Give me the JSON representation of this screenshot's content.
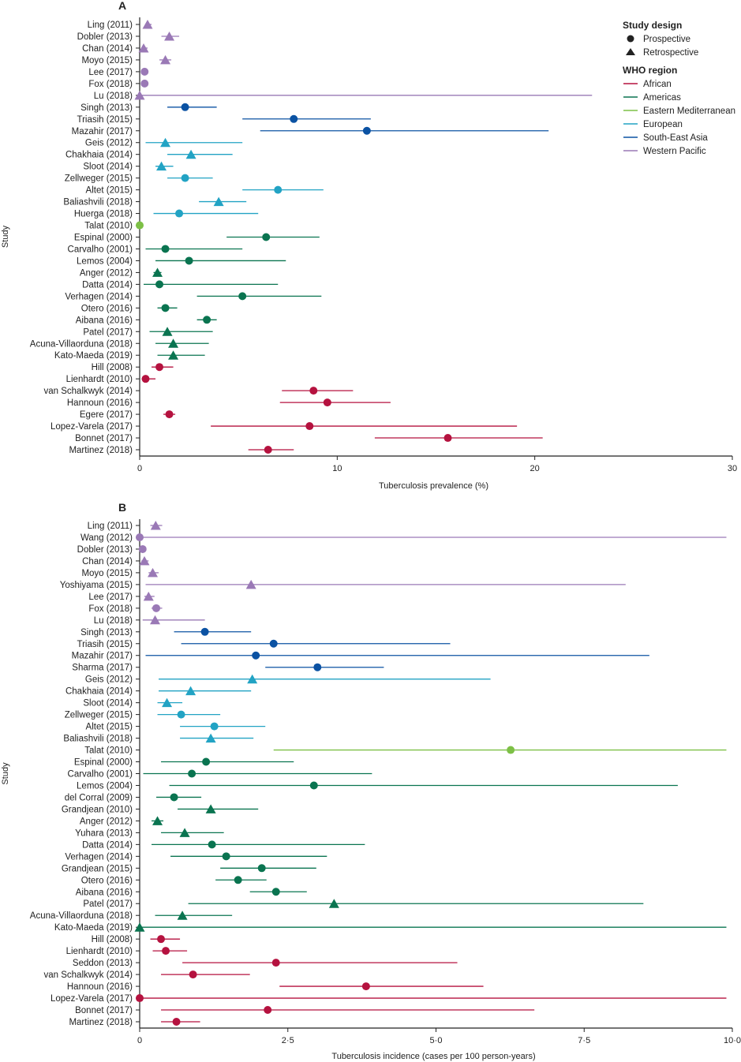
{
  "colors": {
    "African": "#b5123f",
    "Americas": "#0a7450",
    "Eastern Mediterranean": "#7dc046",
    "European": "#22a3c4",
    "South-East Asia": "#0b52a3",
    "Western Pacific": "#9a79b6"
  },
  "legend": {
    "design_title": "Study design",
    "prospective_label": "Prospective",
    "retrospective_label": "Retrospective",
    "region_title": "WHO region",
    "regions": [
      "African",
      "Americas",
      "Eastern Mediterranean",
      "European",
      "South-East Asia",
      "Western Pacific"
    ]
  },
  "y_axis_title": "Study",
  "chart_data": [
    {
      "type": "forest",
      "panel": "A",
      "xlabel": "Tuberculosis prevalence (%)",
      "ylabel": "Study",
      "xlim": [
        0,
        30
      ],
      "xticks": [
        0,
        10,
        20,
        30
      ],
      "xtick_labels": [
        "0",
        "10",
        "20",
        "30"
      ],
      "studies": [
        {
          "label": "Ling (2011)",
          "region": "Western Pacific",
          "design": "Retrospective",
          "est": 0.4,
          "lo": 0.3,
          "hi": 0.6
        },
        {
          "label": "Dobler (2013)",
          "region": "Western Pacific",
          "design": "Retrospective",
          "est": 1.5,
          "lo": 1.1,
          "hi": 2.0
        },
        {
          "label": "Chan (2014)",
          "region": "Western Pacific",
          "design": "Retrospective",
          "est": 0.2,
          "lo": 0.1,
          "hi": 0.4
        },
        {
          "label": "Moyo (2015)",
          "region": "Western Pacific",
          "design": "Retrospective",
          "est": 1.3,
          "lo": 1.0,
          "hi": 1.6
        },
        {
          "label": "Lee (2017)",
          "region": "Western Pacific",
          "design": "Prospective",
          "est": 0.25,
          "lo": 0.1,
          "hi": 0.4
        },
        {
          "label": "Fox (2018)",
          "region": "Western Pacific",
          "design": "Prospective",
          "est": 0.25,
          "lo": 0.15,
          "hi": 0.35
        },
        {
          "label": "Lu (2018)",
          "region": "Western Pacific",
          "design": "Retrospective",
          "est": 0.0,
          "lo": 0.0,
          "hi": 22.9
        },
        {
          "label": "Singh (2013)",
          "region": "South-East Asia",
          "design": "Prospective",
          "est": 2.3,
          "lo": 1.4,
          "hi": 3.9
        },
        {
          "label": "Triasih (2015)",
          "region": "South-East Asia",
          "design": "Prospective",
          "est": 7.8,
          "lo": 5.2,
          "hi": 11.7
        },
        {
          "label": "Mazahir (2017)",
          "region": "South-East Asia",
          "design": "Prospective",
          "est": 11.5,
          "lo": 6.1,
          "hi": 20.7
        },
        {
          "label": "Geis (2012)",
          "region": "European",
          "design": "Retrospective",
          "est": 1.3,
          "lo": 0.3,
          "hi": 5.2
        },
        {
          "label": "Chakhaia (2014)",
          "region": "European",
          "design": "Retrospective",
          "est": 2.6,
          "lo": 1.4,
          "hi": 4.7
        },
        {
          "label": "Sloot (2014)",
          "region": "European",
          "design": "Retrospective",
          "est": 1.1,
          "lo": 0.8,
          "hi": 1.7
        },
        {
          "label": "Zellweger (2015)",
          "region": "European",
          "design": "Prospective",
          "est": 2.3,
          "lo": 1.4,
          "hi": 3.7
        },
        {
          "label": "Altet (2015)",
          "region": "European",
          "design": "Prospective",
          "est": 7.0,
          "lo": 5.2,
          "hi": 9.3
        },
        {
          "label": "Baliashvili (2018)",
          "region": "European",
          "design": "Retrospective",
          "est": 4.0,
          "lo": 3.0,
          "hi": 5.4
        },
        {
          "label": "Huerga (2018)",
          "region": "European",
          "design": "Prospective",
          "est": 2.0,
          "lo": 0.7,
          "hi": 6.0
        },
        {
          "label": "Talat (2010)",
          "region": "Eastern Mediterranean",
          "design": "Prospective",
          "est": 0.0,
          "lo": 0.0,
          "hi": 0.0
        },
        {
          "label": "Espinal (2000)",
          "region": "Americas",
          "design": "Prospective",
          "est": 6.4,
          "lo": 4.4,
          "hi": 9.1
        },
        {
          "label": "Carvalho (2001)",
          "region": "Americas",
          "design": "Prospective",
          "est": 1.3,
          "lo": 0.3,
          "hi": 5.2
        },
        {
          "label": "Lemos (2004)",
          "region": "Americas",
          "design": "Prospective",
          "est": 2.5,
          "lo": 0.8,
          "hi": 7.4
        },
        {
          "label": "Anger (2012)",
          "region": "Americas",
          "design": "Retrospective",
          "est": 0.9,
          "lo": 0.7,
          "hi": 1.1
        },
        {
          "label": "Datta (2014)",
          "region": "Americas",
          "design": "Prospective",
          "est": 1.0,
          "lo": 0.2,
          "hi": 7.0
        },
        {
          "label": "Verhagen (2014)",
          "region": "Americas",
          "design": "Prospective",
          "est": 5.2,
          "lo": 2.9,
          "hi": 9.2
        },
        {
          "label": "Otero (2016)",
          "region": "Americas",
          "design": "Prospective",
          "est": 1.3,
          "lo": 0.9,
          "hi": 1.9
        },
        {
          "label": "Aibana (2016)",
          "region": "Americas",
          "design": "Prospective",
          "est": 3.4,
          "lo": 2.9,
          "hi": 3.9
        },
        {
          "label": "Patel (2017)",
          "region": "Americas",
          "design": "Retrospective",
          "est": 1.4,
          "lo": 0.5,
          "hi": 3.7
        },
        {
          "label": "Acuna-Villaorduna (2018)",
          "region": "Americas",
          "design": "Retrospective",
          "est": 1.7,
          "lo": 0.8,
          "hi": 3.5
        },
        {
          "label": "Kato-Maeda (2019)",
          "region": "Americas",
          "design": "Retrospective",
          "est": 1.7,
          "lo": 0.9,
          "hi": 3.3
        },
        {
          "label": "Hill (2008)",
          "region": "African",
          "design": "Prospective",
          "est": 1.0,
          "lo": 0.6,
          "hi": 1.7
        },
        {
          "label": "Lienhardt (2010)",
          "region": "African",
          "design": "Prospective",
          "est": 0.3,
          "lo": 0.1,
          "hi": 0.8
        },
        {
          "label": "van Schalkwyk (2014)",
          "region": "African",
          "design": "Prospective",
          "est": 8.8,
          "lo": 7.2,
          "hi": 10.8
        },
        {
          "label": "Hannoun (2016)",
          "region": "African",
          "design": "Prospective",
          "est": 9.5,
          "lo": 7.1,
          "hi": 12.7
        },
        {
          "label": "Egere (2017)",
          "region": "African",
          "design": "Prospective",
          "est": 1.5,
          "lo": 1.2,
          "hi": 1.8
        },
        {
          "label": "Lopez-Varela (2017)",
          "region": "African",
          "design": "Prospective",
          "est": 8.6,
          "lo": 3.6,
          "hi": 19.1
        },
        {
          "label": "Bonnet (2017)",
          "region": "African",
          "design": "Prospective",
          "est": 15.6,
          "lo": 11.9,
          "hi": 20.4
        },
        {
          "label": "Martinez (2018)",
          "region": "African",
          "design": "Prospective",
          "est": 6.5,
          "lo": 5.5,
          "hi": 7.8
        }
      ]
    },
    {
      "type": "forest",
      "panel": "B",
      "xlabel": "Tuberculosis incidence (cases per 100 person-years)",
      "ylabel": "Study",
      "xlim": [
        0,
        10
      ],
      "xticks": [
        0,
        2.5,
        5,
        7.5,
        10
      ],
      "xtick_labels": [
        "0",
        "2·5",
        "5·0",
        "7·5",
        "10·0"
      ],
      "studies": [
        {
          "label": "Ling (2011)",
          "region": "Western Pacific",
          "design": "Retrospective",
          "est": 0.27,
          "lo": 0.18,
          "hi": 0.38
        },
        {
          "label": "Wang (2012)",
          "region": "Western Pacific",
          "design": "Prospective",
          "est": 0.0,
          "lo": 0.0,
          "hi": 9.9
        },
        {
          "label": "Dobler (2013)",
          "region": "Western Pacific",
          "design": "Prospective",
          "est": 0.05,
          "lo": 0.02,
          "hi": 0.1
        },
        {
          "label": "Chan (2014)",
          "region": "Western Pacific",
          "design": "Retrospective",
          "est": 0.08,
          "lo": 0.03,
          "hi": 0.15
        },
        {
          "label": "Moyo (2015)",
          "region": "Western Pacific",
          "design": "Retrospective",
          "est": 0.22,
          "lo": 0.15,
          "hi": 0.32
        },
        {
          "label": "Yoshiyama (2015)",
          "region": "Western Pacific",
          "design": "Retrospective",
          "est": 1.88,
          "lo": 0.1,
          "hi": 8.2
        },
        {
          "label": "Lee (2017)",
          "region": "Western Pacific",
          "design": "Retrospective",
          "est": 0.15,
          "lo": 0.08,
          "hi": 0.25
        },
        {
          "label": "Fox (2018)",
          "region": "Western Pacific",
          "design": "Prospective",
          "est": 0.28,
          "lo": 0.2,
          "hi": 0.38
        },
        {
          "label": "Lu (2018)",
          "region": "Western Pacific",
          "design": "Retrospective",
          "est": 0.26,
          "lo": 0.05,
          "hi": 1.1
        },
        {
          "label": "Singh (2013)",
          "region": "South-East Asia",
          "design": "Prospective",
          "est": 1.1,
          "lo": 0.58,
          "hi": 1.88
        },
        {
          "label": "Triasih (2015)",
          "region": "South-East Asia",
          "design": "Prospective",
          "est": 2.26,
          "lo": 0.7,
          "hi": 5.24
        },
        {
          "label": "Mazahir (2017)",
          "region": "South-East Asia",
          "design": "Prospective",
          "est": 1.96,
          "lo": 0.1,
          "hi": 8.6
        },
        {
          "label": "Sharma (2017)",
          "region": "South-East Asia",
          "design": "Prospective",
          "est": 3.0,
          "lo": 2.12,
          "hi": 4.12
        },
        {
          "label": "Geis (2012)",
          "region": "European",
          "design": "Retrospective",
          "est": 1.9,
          "lo": 0.32,
          "hi": 5.92
        },
        {
          "label": "Chakhaia (2014)",
          "region": "European",
          "design": "Retrospective",
          "est": 0.86,
          "lo": 0.32,
          "hi": 1.88
        },
        {
          "label": "Sloot (2014)",
          "region": "European",
          "design": "Retrospective",
          "est": 0.46,
          "lo": 0.3,
          "hi": 0.72
        },
        {
          "label": "Zellweger (2015)",
          "region": "European",
          "design": "Prospective",
          "est": 0.7,
          "lo": 0.3,
          "hi": 1.36
        },
        {
          "label": "Altet (2015)",
          "region": "European",
          "design": "Prospective",
          "est": 1.26,
          "lo": 0.68,
          "hi": 2.12
        },
        {
          "label": "Baliashvili (2018)",
          "region": "European",
          "design": "Retrospective",
          "est": 1.2,
          "lo": 0.68,
          "hi": 1.92
        },
        {
          "label": "Talat (2010)",
          "region": "Eastern Mediterranean",
          "design": "Prospective",
          "est": 6.26,
          "lo": 2.26,
          "hi": 9.9
        },
        {
          "label": "Espinal (2000)",
          "region": "Americas",
          "design": "Prospective",
          "est": 1.12,
          "lo": 0.36,
          "hi": 2.6
        },
        {
          "label": "Carvalho (2001)",
          "region": "Americas",
          "design": "Prospective",
          "est": 0.88,
          "lo": 0.06,
          "hi": 3.92
        },
        {
          "label": "Lemos (2004)",
          "region": "Americas",
          "design": "Prospective",
          "est": 2.94,
          "lo": 0.5,
          "hi": 9.08
        },
        {
          "label": "del Corral (2009)",
          "region": "Americas",
          "design": "Prospective",
          "est": 0.58,
          "lo": 0.28,
          "hi": 1.04
        },
        {
          "label": "Grandjean (2010)",
          "region": "Americas",
          "design": "Retrospective",
          "est": 1.2,
          "lo": 0.64,
          "hi": 2.0
        },
        {
          "label": "Anger (2012)",
          "region": "Americas",
          "design": "Retrospective",
          "est": 0.3,
          "lo": 0.2,
          "hi": 0.4
        },
        {
          "label": "Yuhara (2013)",
          "region": "Americas",
          "design": "Retrospective",
          "est": 0.76,
          "lo": 0.36,
          "hi": 1.42
        },
        {
          "label": "Datta (2014)",
          "region": "Americas",
          "design": "Prospective",
          "est": 1.22,
          "lo": 0.2,
          "hi": 3.8
        },
        {
          "label": "Verhagen (2014)",
          "region": "Americas",
          "design": "Prospective",
          "est": 1.46,
          "lo": 0.52,
          "hi": 3.16
        },
        {
          "label": "Grandjean (2015)",
          "region": "Americas",
          "design": "Prospective",
          "est": 2.06,
          "lo": 1.36,
          "hi": 2.98
        },
        {
          "label": "Otero (2016)",
          "region": "Americas",
          "design": "Prospective",
          "est": 1.66,
          "lo": 1.28,
          "hi": 2.14
        },
        {
          "label": "Aibana (2016)",
          "region": "Americas",
          "design": "Prospective",
          "est": 2.3,
          "lo": 1.86,
          "hi": 2.82
        },
        {
          "label": "Patel (2017)",
          "region": "Americas",
          "design": "Retrospective",
          "est": 3.28,
          "lo": 0.82,
          "hi": 8.5
        },
        {
          "label": "Acuna-Villaorduna (2018)",
          "region": "Americas",
          "design": "Retrospective",
          "est": 0.72,
          "lo": 0.26,
          "hi": 1.56
        },
        {
          "label": "Kato-Maeda (2019)",
          "region": "Americas",
          "design": "Retrospective",
          "est": 0.0,
          "lo": 0.0,
          "hi": 9.9
        },
        {
          "label": "Hill (2008)",
          "region": "African",
          "design": "Prospective",
          "est": 0.36,
          "lo": 0.18,
          "hi": 0.68
        },
        {
          "label": "Lienhardt (2010)",
          "region": "African",
          "design": "Prospective",
          "est": 0.44,
          "lo": 0.22,
          "hi": 0.8
        },
        {
          "label": "Seddon (2013)",
          "region": "African",
          "design": "Prospective",
          "est": 2.3,
          "lo": 0.72,
          "hi": 5.36
        },
        {
          "label": "van Schalkwyk (2014)",
          "region": "African",
          "design": "Prospective",
          "est": 0.9,
          "lo": 0.36,
          "hi": 1.86
        },
        {
          "label": "Hannoun (2016)",
          "region": "African",
          "design": "Prospective",
          "est": 3.82,
          "lo": 2.36,
          "hi": 5.8
        },
        {
          "label": "Lopez-Varela (2017)",
          "region": "African",
          "design": "Prospective",
          "est": 0.0,
          "lo": 0.0,
          "hi": 9.9
        },
        {
          "label": "Bonnet (2017)",
          "region": "African",
          "design": "Prospective",
          "est": 2.16,
          "lo": 0.36,
          "hi": 6.66
        },
        {
          "label": "Martinez (2018)",
          "region": "African",
          "design": "Prospective",
          "est": 0.62,
          "lo": 0.36,
          "hi": 1.02
        }
      ]
    }
  ]
}
